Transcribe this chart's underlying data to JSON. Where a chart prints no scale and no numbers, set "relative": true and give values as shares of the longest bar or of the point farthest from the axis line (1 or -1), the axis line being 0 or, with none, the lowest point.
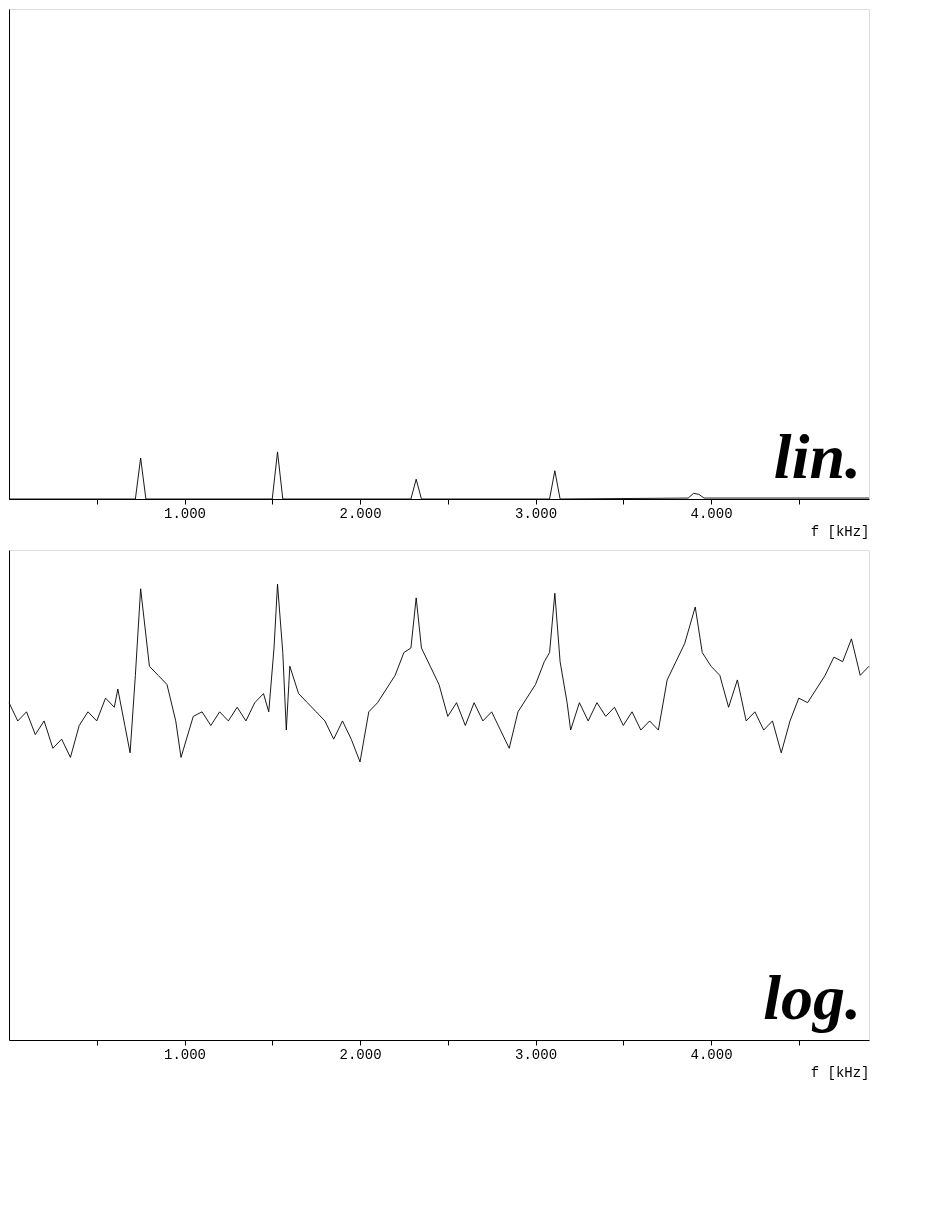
{
  "chart_data": [
    {
      "type": "line",
      "relative": true,
      "xlabel": "f [kHz]",
      "annotations": [
        "lin."
      ],
      "grid": false,
      "marker": "none",
      "xlim": [
        0,
        4.9
      ],
      "xticks": [
        {
          "value": 0.5,
          "label": null
        },
        {
          "value": 1,
          "label": "1.000"
        },
        {
          "value": 1.5,
          "label": null
        },
        {
          "value": 2,
          "label": "2.000"
        },
        {
          "value": 2.5,
          "label": null
        },
        {
          "value": 3,
          "label": "3.000"
        },
        {
          "value": 3.5,
          "label": null
        },
        {
          "value": 4,
          "label": "4.000"
        },
        {
          "value": 4.5,
          "label": null
        }
      ],
      "series": [
        {
          "color": "#000000",
          "x": [
            0,
            0.72,
            0.75,
            0.78,
            1.5,
            1.53,
            1.56,
            2.29,
            2.32,
            2.35,
            3.08,
            3.11,
            3.14,
            3.87,
            3.9,
            3.93,
            3.96,
            4.9
          ],
          "values": [
            0,
            0,
            0.87,
            0,
            0,
            1,
            0,
            0,
            0.42,
            0,
            0,
            0.6,
            0,
            0.02,
            0.12,
            0.1,
            0.02,
            0.02
          ]
        }
      ]
    },
    {
      "type": "line",
      "relative": true,
      "xlabel": "f [kHz]",
      "annotations": [
        "log."
      ],
      "grid": false,
      "marker": "none",
      "xlim": [
        0,
        4.9
      ],
      "xticks": [
        {
          "value": 0.5,
          "label": null
        },
        {
          "value": 1,
          "label": "1.000"
        },
        {
          "value": 1.5,
          "label": null
        },
        {
          "value": 2,
          "label": "2.000"
        },
        {
          "value": 2.5,
          "label": null
        },
        {
          "value": 3,
          "label": "3.000"
        },
        {
          "value": 3.5,
          "label": null
        },
        {
          "value": 4,
          "label": "4.000"
        },
        {
          "value": 4.5,
          "label": null
        }
      ],
      "series": [
        {
          "color": "#000000",
          "x": [
            0,
            0.05,
            0.1,
            0.15,
            0.2,
            0.25,
            0.3,
            0.35,
            0.4,
            0.45,
            0.5,
            0.55,
            0.6,
            0.62,
            0.66,
            0.69,
            0.72,
            0.75,
            0.8,
            0.85,
            0.9,
            0.95,
            0.98,
            1.05,
            1.1,
            1.15,
            1.2,
            1.25,
            1.3,
            1.35,
            1.4,
            1.45,
            1.48,
            1.51,
            1.53,
            1.56,
            1.58,
            1.6,
            1.65,
            1.7,
            1.75,
            1.8,
            1.85,
            1.9,
            1.95,
            2.0,
            2.05,
            2.1,
            2.15,
            2.2,
            2.25,
            2.29,
            2.32,
            2.35,
            2.4,
            2.45,
            2.5,
            2.55,
            2.6,
            2.65,
            2.7,
            2.75,
            2.8,
            2.85,
            2.9,
            2.95,
            3.0,
            3.05,
            3.08,
            3.11,
            3.14,
            3.18,
            3.2,
            3.25,
            3.3,
            3.35,
            3.4,
            3.45,
            3.5,
            3.55,
            3.6,
            3.65,
            3.7,
            3.75,
            3.8,
            3.85,
            3.91,
            3.95,
            4.0,
            4.05,
            4.1,
            4.15,
            4.2,
            4.25,
            4.3,
            4.35,
            4.4,
            4.45,
            4.5,
            4.55,
            4.6,
            4.65,
            4.7,
            4.75,
            4.8,
            4.85,
            4.9
          ],
          "values": [
            0.74,
            0.7,
            0.72,
            0.67,
            0.7,
            0.64,
            0.66,
            0.62,
            0.69,
            0.72,
            0.7,
            0.75,
            0.73,
            0.77,
            0.69,
            0.63,
            0.8,
            0.99,
            0.82,
            0.8,
            0.78,
            0.7,
            0.62,
            0.71,
            0.72,
            0.69,
            0.72,
            0.7,
            0.73,
            0.7,
            0.74,
            0.76,
            0.72,
            0.86,
            1.0,
            0.85,
            0.68,
            0.82,
            0.76,
            0.74,
            0.72,
            0.7,
            0.66,
            0.7,
            0.66,
            0.61,
            0.72,
            0.74,
            0.77,
            0.8,
            0.85,
            0.86,
            0.97,
            0.86,
            0.82,
            0.78,
            0.71,
            0.74,
            0.69,
            0.74,
            0.7,
            0.72,
            0.68,
            0.64,
            0.72,
            0.75,
            0.78,
            0.83,
            0.85,
            0.98,
            0.83,
            0.74,
            0.68,
            0.74,
            0.7,
            0.74,
            0.71,
            0.73,
            0.69,
            0.72,
            0.68,
            0.7,
            0.68,
            0.79,
            0.83,
            0.87,
            0.95,
            0.85,
            0.82,
            0.8,
            0.73,
            0.79,
            0.7,
            0.72,
            0.68,
            0.7,
            0.63,
            0.7,
            0.75,
            0.74,
            0.77,
            0.8,
            0.84,
            0.83,
            0.88,
            0.8,
            0.82
          ]
        }
      ]
    }
  ]
}
